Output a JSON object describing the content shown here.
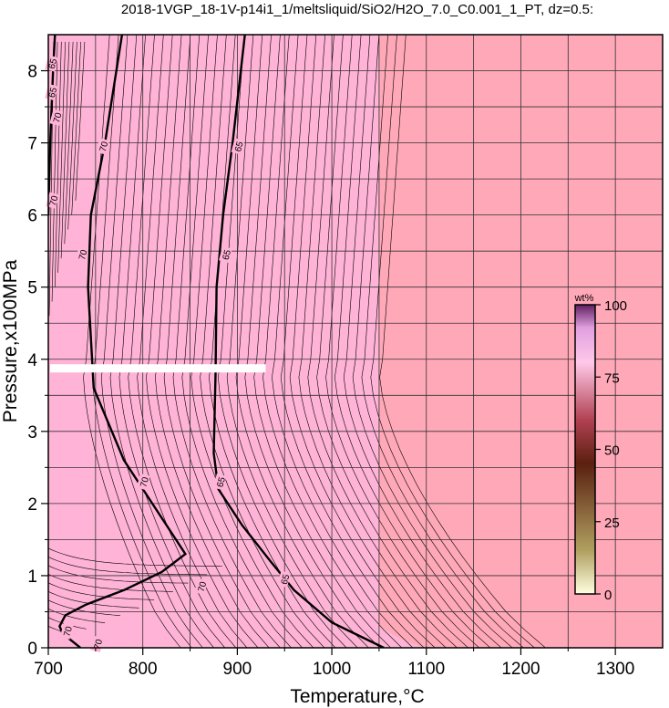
{
  "chart_data": {
    "type": "heatmap",
    "title": "2018-1VGP_18-1V-p14i1_1/meltsliquid/SiO2/H2O_7.0_C0.001_1_PT, dz=0.5:",
    "xlabel": "Temperature,°C",
    "ylabel": "Pressure,x100MPa",
    "xlim": [
      700,
      1350
    ],
    "ylim": [
      0,
      8.5
    ],
    "xticks": [
      "700",
      "800",
      "900",
      "1000",
      "1100",
      "1200",
      "1300"
    ],
    "yticks": [
      "0",
      "1",
      "2",
      "3",
      "4",
      "5",
      "6",
      "7",
      "8"
    ],
    "grid": true,
    "colors": {
      "melt_field": "#ffb3d6",
      "liquid_only_field": "#ffa8b8",
      "missing_band": "#ffffff",
      "contour_line": "#000000"
    },
    "missing_band_pressure": 3.88,
    "missing_band_temperature": [
      700,
      930
    ],
    "liquidus_temperature_approx": 1050,
    "highlighted_contours": [
      {
        "label": "70",
        "points": [
          [
            734,
            0.0
          ],
          [
            715,
            0.2
          ],
          [
            712,
            0.3
          ],
          [
            718,
            0.45
          ],
          [
            740,
            0.6
          ],
          [
            780,
            0.8
          ],
          [
            820,
            1.05
          ],
          [
            845,
            1.3
          ],
          [
            810,
            2.0
          ],
          [
            780,
            2.6
          ],
          [
            748,
            3.6
          ],
          [
            742,
            5.0
          ],
          [
            745,
            6.0
          ],
          [
            760,
            7.0
          ],
          [
            778,
            8.5
          ]
        ]
      },
      {
        "label": "65",
        "points": [
          [
            1055,
            0.0
          ],
          [
            1000,
            0.35
          ],
          [
            960,
            0.8
          ],
          [
            935,
            1.2
          ],
          [
            905,
            1.7
          ],
          [
            880,
            2.2
          ],
          [
            875,
            2.7
          ],
          [
            877,
            3.8
          ],
          [
            878,
            5.0
          ],
          [
            885,
            6.0
          ],
          [
            895,
            7.0
          ],
          [
            908,
            8.5
          ]
        ]
      },
      {
        "label": "70",
        "points": [
          [
            700,
            6.0
          ],
          [
            702,
            7.0
          ],
          [
            705,
            8.0
          ],
          [
            707,
            8.5
          ]
        ]
      }
    ],
    "contour_labels": [
      {
        "text": "65",
        "x": 704,
        "y": 8.1
      },
      {
        "text": "65",
        "x": 704,
        "y": 7.7
      },
      {
        "text": "70",
        "x": 709,
        "y": 7.35
      },
      {
        "text": "70",
        "x": 758,
        "y": 6.95
      },
      {
        "text": "65",
        "x": 901,
        "y": 6.95
      },
      {
        "text": "70",
        "x": 705,
        "y": 6.2
      },
      {
        "text": "70",
        "x": 736,
        "y": 5.45
      },
      {
        "text": "65",
        "x": 888,
        "y": 5.45
      },
      {
        "text": "70",
        "x": 801,
        "y": 2.3
      },
      {
        "text": "65",
        "x": 882,
        "y": 2.3
      },
      {
        "text": "70",
        "x": 862,
        "y": 0.85
      },
      {
        "text": "65",
        "x": 950,
        "y": 0.95
      },
      {
        "text": "70",
        "x": 720,
        "y": 0.23
      },
      {
        "text": "70",
        "x": 752,
        "y": 0.05
      }
    ],
    "colorbar": {
      "unit": "wt%",
      "range": [
        0,
        100
      ],
      "ticks": [
        "0",
        "25",
        "50",
        "75",
        "100"
      ],
      "stops": [
        "#ffffe0",
        "#b0a060",
        "#5a2010",
        "#b04050",
        "#ffc8e8",
        "#e0a0e0",
        "#602060"
      ]
    }
  }
}
